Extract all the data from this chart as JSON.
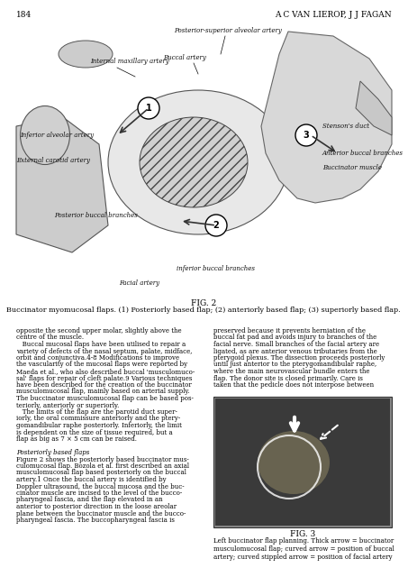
{
  "page_number": "184",
  "author_header": "A C VAN LIEROP, J J FAGAN",
  "fig2_title": "FIG. 2",
  "fig2_caption": "Buccinator myomucosal flaps. (1) Posteriorly based flap; (2) anteriorly based flap; (3) superiorly based flap.",
  "fig3_title": "FIG. 3",
  "fig3_caption": "Left buccinator flap planning. Thick arrow = buccinator\nmusculomucosal flap; curved arrow = position of buccal\nartery; curved stippled arrow = position of facial artery",
  "background_color": "#ffffff",
  "text_color": "#000000",
  "diagram_labels": [
    "Posterior-superior alveolar artery",
    "Internal maxillary artery",
    "Buccal artery",
    "Inferior alveolar artery",
    "External carotid artery",
    "Posterior buccal branches",
    "Facial artery",
    "Stenson's duct",
    "Anterior buccal branches",
    "Buccinator muscle",
    "inferior buccal branches"
  ],
  "left_column_text": [
    "opposite the second upper molar, slightly above the",
    "centre of the muscle.",
    "   Buccal mucosal flaps have been utilised to repair a",
    "variety of defects of the nasal septum, palate, midface,",
    "orbit and conjunctiva.4-8 Modifications to improve",
    "the vascularity of the mucosal flaps were reported by",
    "Maeda et al., who also described buccal 'musculomuco-",
    "sal' flaps for repair of cleft palate.9 Various techniques",
    "have been described for the creation of the buccinator",
    "musculomucosal flap, mainly based on arterial supply.",
    "The buccinator musculomucosal flap can be based pos-",
    "teriorly, anteriorly or superiorly.",
    "   The limits of the flap are the parotid duct super-",
    "iorly, the oral commissure anteriorly and the ptery-",
    "gomandibular raphe posteriorly. Inferiorly, the limit",
    "is dependent on the size of tissue required, but a",
    "flap as big as 7 × 5 cm can be raised.",
    "",
    "Posteriorly based flaps",
    "Figure 2 shows the posteriorly based buccinator mus-",
    "culomucosal flap. Bozola et al. first described an axial",
    "musculomucosal flap based posteriorly on the buccal",
    "artery.1 Once the buccal artery is identified by",
    "Doppler ultrasound, the buccal mucosa and the buc-",
    "cinator muscle are incised to the level of the bucco-",
    "pharyngeal fascia, and the flap elevated in an",
    "anterior to posterior direction in the loose areolar",
    "plane between the buccinator muscle and the bucco-",
    "pharyngeal fascia. The buccopharyngeal fascia is"
  ],
  "right_column_text": [
    "preserved because it prevents herniation of the",
    "buccal fat pad and avoids injury to branches of the",
    "facial nerve. Small branches of the facial artery are",
    "ligated, as are anterior venous tributaries from the",
    "pterygoid plexus. The dissection proceeds posteriorly",
    "until just anterior to the pterygomandibular raphe,",
    "where the main neurovascular bundle enters the",
    "flap. The donor site is closed primarily. Care is",
    "taken that the pedicle does not interpose between"
  ]
}
